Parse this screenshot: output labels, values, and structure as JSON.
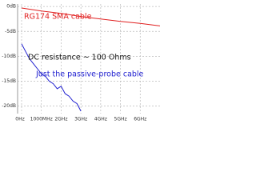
{
  "chart_data": {
    "type": "line",
    "annotations": [
      "RG174 SMA cable",
      "DC resistance ~ 100 Ohms",
      "Just the passive-probe cable"
    ],
    "xlim": [
      0,
      7
    ],
    "ylim": [
      -21.5,
      0.5
    ],
    "xticks": [
      {
        "value": 0,
        "label": "0Hz"
      },
      {
        "value": 1,
        "label": "1000MHz"
      },
      {
        "value": 2,
        "label": "2GHz"
      },
      {
        "value": 3,
        "label": "3GHz"
      },
      {
        "value": 4,
        "label": "4GHz"
      },
      {
        "value": 5,
        "label": "5GHz"
      },
      {
        "value": 6,
        "label": "6GHz"
      }
    ],
    "yticks": [
      {
        "value": 0,
        "label": "0dB"
      },
      {
        "value": -5,
        "label": "-5dB"
      },
      {
        "value": -10,
        "label": "-10dB"
      },
      {
        "value": -15,
        "label": "-15dB"
      },
      {
        "value": -20,
        "label": "-20dB"
      }
    ],
    "grid": true,
    "series": [
      {
        "color": "#e02020",
        "x": [
          0,
          1,
          2,
          3,
          4,
          5,
          6,
          7
        ],
        "values": [
          -0.3,
          -0.9,
          -1.4,
          -2.0,
          -2.5,
          -3.0,
          -3.4,
          -3.9
        ]
      },
      {
        "color": "#2020d0",
        "x": [
          0,
          0.2,
          0.4,
          0.6,
          0.8,
          1.0,
          1.2,
          1.4,
          1.6,
          1.8,
          2.0,
          2.2,
          2.4,
          2.6,
          2.8,
          3.0
        ],
        "values": [
          -7.5,
          -9,
          -10.5,
          -11.5,
          -12.5,
          -13.5,
          -14,
          -15,
          -15.5,
          -16.5,
          -16,
          -17.5,
          -18,
          -19,
          -19.5,
          -21
        ]
      }
    ]
  }
}
